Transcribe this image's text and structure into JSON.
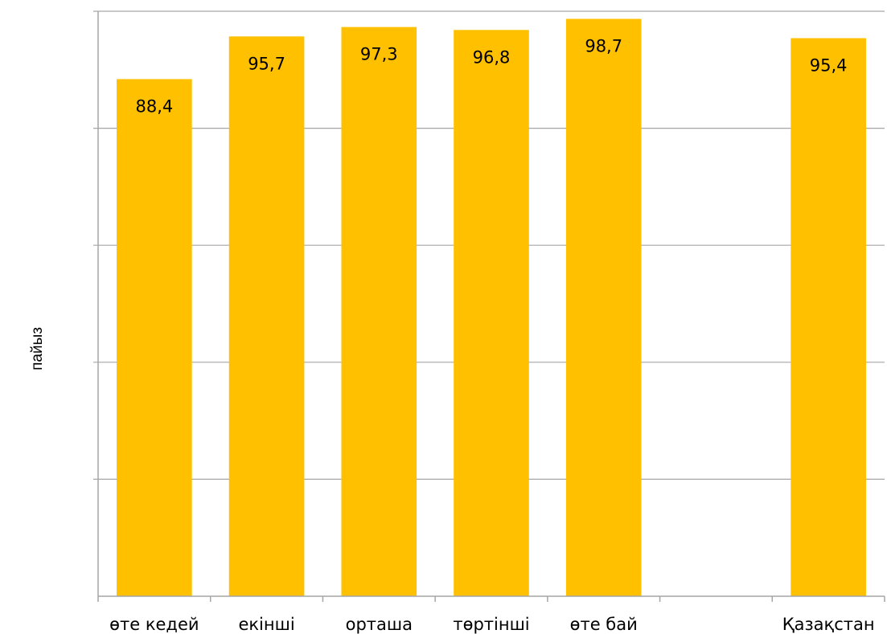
{
  "chart_data": {
    "type": "bar",
    "title": "",
    "xlabel": "",
    "ylabel": "пайыз",
    "categories": [
      "өте кедей",
      "екінші",
      "орташа",
      "төртінші",
      "өте бай",
      "",
      "Қазақстан"
    ],
    "values": [
      88.4,
      95.7,
      97.3,
      96.8,
      98.7,
      null,
      95.4
    ],
    "data_labels": [
      "88,4",
      "95,7",
      "97,3",
      "96,8",
      "98,7",
      "",
      "95,4"
    ],
    "ylim": [
      0,
      100
    ],
    "y_gridlines": [
      0,
      20,
      40,
      60,
      80,
      100
    ],
    "y_tick_labels_shown": false,
    "grid": true,
    "legend": "none",
    "colors": {
      "bar": "#FFC000",
      "grid": "#A6A6A6",
      "axis": "#A6A6A6"
    }
  }
}
